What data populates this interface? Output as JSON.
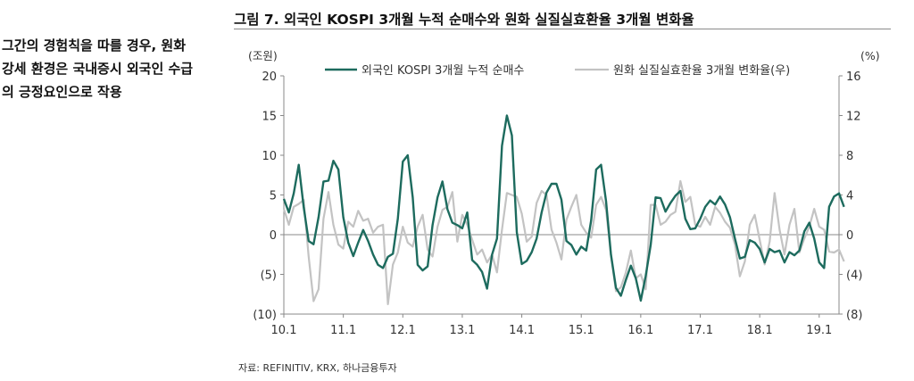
{
  "side_note": {
    "lines": [
      "그간의 경험칙을 따를 경우, 원화",
      "강세 환경은 국내증시 외국인 수급",
      "의 긍정요인으로 작용"
    ]
  },
  "figure": {
    "title": "그림 7. 외국인 KOSPI 3개월 누적 순매수와 원화 실질실효환율 3개월 변화율",
    "source": "자료: REFINITIV, KRX, 하나금융투자"
  },
  "chart_data": {
    "type": "line",
    "left_unit": "(조원)",
    "right_unit": "(%)",
    "ylim_left": [
      -10,
      20
    ],
    "ylim_right": [
      -8,
      16
    ],
    "left_ticks": [
      "20",
      "15",
      "10",
      "5",
      "0",
      "(5)",
      "(10)"
    ],
    "right_ticks": [
      "16",
      "12",
      "8",
      "4",
      "0",
      "(4)",
      "(8)"
    ],
    "x_ticks": [
      "10.1",
      "11.1",
      "12.1",
      "13.1",
      "14.1",
      "15.1",
      "16.1",
      "17.1",
      "18.1",
      "19.1"
    ],
    "x_range": [
      0,
      112
    ],
    "x_tick_positions": [
      0,
      12,
      24,
      36,
      48,
      60,
      72,
      84,
      96,
      108
    ],
    "legend_placement": "top",
    "colors": {
      "foreign": "#1d6b5e",
      "krw": "#c3c3c3"
    },
    "series": [
      {
        "name": "외국인 KOSPI 3개월 누적 순매수",
        "axis": "left",
        "values": [
          4.5,
          2.8,
          5.2,
          8.8,
          3.5,
          -0.8,
          -1.2,
          2.2,
          6.7,
          6.8,
          9.3,
          8.2,
          2.2,
          -1.0,
          -2.7,
          -1.0,
          0.6,
          -0.8,
          -2.5,
          -3.8,
          -4.2,
          -2.8,
          -2.4,
          2.0,
          9.2,
          10.0,
          4.7,
          -3.8,
          -4.5,
          -4.0,
          1.2,
          4.7,
          6.7,
          3.2,
          1.5,
          1.2,
          0.8,
          2.8,
          -3.2,
          -3.8,
          -4.7,
          -6.8,
          -2.5,
          -0.5,
          11.2,
          15.0,
          12.5,
          0.3,
          -3.7,
          -3.3,
          -2.2,
          -0.5,
          2.8,
          5.3,
          6.4,
          6.4,
          4.4,
          -0.8,
          -1.3,
          -2.5,
          -1.5,
          -2.0,
          1.8,
          8.2,
          8.8,
          4.2,
          -2.5,
          -6.7,
          -7.7,
          -5.7,
          -3.9,
          -5.5,
          -8.3,
          -5.2,
          -1.3,
          4.7,
          4.6,
          2.9,
          4.0,
          4.9,
          5.5,
          2.0,
          0.7,
          0.8,
          2.0,
          3.5,
          4.3,
          3.8,
          4.8,
          3.8,
          2.2,
          -0.5,
          -3.0,
          -2.8,
          -0.7,
          -1.0,
          -1.8,
          -3.5,
          -1.8,
          -2.2,
          -2.0,
          -3.5,
          -2.2,
          -2.6,
          -2.0,
          0.4,
          1.5,
          -0.5,
          -3.5,
          -4.2,
          3.5,
          4.8,
          5.2,
          3.5
        ]
      },
      {
        "name": "원화 실질실효환율 3개월 변화율(우)",
        "axis": "right",
        "values": [
          2.6,
          1.0,
          2.8,
          3.1,
          3.5,
          -2.2,
          -6.7,
          -5.5,
          1.6,
          4.3,
          1.0,
          -1.0,
          -1.4,
          1.3,
          0.8,
          2.4,
          1.4,
          1.6,
          0.2,
          0.8,
          1.0,
          -7.0,
          -3.0,
          -1.8,
          0.8,
          -0.8,
          -1.2,
          0.8,
          2.0,
          -1.5,
          -2.2,
          0.8,
          2.5,
          2.8,
          4.3,
          -0.7,
          2.0,
          1.0,
          -0.5,
          -2.0,
          -1.5,
          -2.8,
          -2.0,
          -3.8,
          0.5,
          4.2,
          4.0,
          3.8,
          2.1,
          -0.7,
          -0.2,
          3.2,
          4.4,
          4.0,
          0.5,
          -0.8,
          -2.5,
          1.5,
          2.8,
          4.0,
          1.0,
          0.2,
          -0.3,
          3.0,
          3.8,
          2.5,
          -2.1,
          -5.7,
          -5.3,
          -3.8,
          -1.6,
          -4.4,
          -4.0,
          -5.5,
          3.0,
          3.0,
          1.0,
          1.3,
          2.0,
          2.3,
          5.4,
          3.3,
          3.8,
          1.0,
          0.8,
          1.8,
          1.0,
          2.8,
          2.2,
          1.3,
          0.7,
          -1.0,
          -4.2,
          -2.7,
          1.0,
          2.0,
          -0.5,
          -3.0,
          -0.7,
          4.2,
          0.5,
          -2.0,
          1.0,
          2.6,
          -1.8,
          -0.4,
          0.8,
          2.6,
          0.8,
          0.5,
          -1.7,
          -1.8,
          -1.5,
          -2.7
        ]
      }
    ]
  }
}
